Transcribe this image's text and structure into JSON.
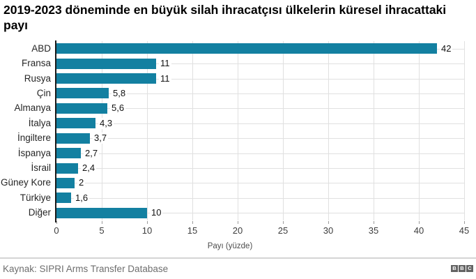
{
  "title": "2019-2023 döneminde en büyük silah ihracatçısı ülkelerin küresel ihracattaki payı",
  "chart_data": {
    "type": "bar",
    "orientation": "horizontal",
    "categories": [
      "ABD",
      "Fransa",
      "Rusya",
      "Çin",
      "Almanya",
      "İtalya",
      "İngiltere",
      "İspanya",
      "İsrail",
      "Güney Kore",
      "Türkiye",
      "Diğer"
    ],
    "values": [
      42,
      11,
      11,
      5.8,
      5.6,
      4.3,
      3.7,
      2.7,
      2.4,
      2,
      1.6,
      10
    ],
    "value_labels": [
      "42",
      "11",
      "11",
      "5,8",
      "5,6",
      "4,3",
      "3,7",
      "2,7",
      "2,4",
      "2",
      "1,6",
      "10"
    ],
    "title": "2019-2023 döneminde en büyük silah ihracatçısı ülkelerin küresel ihracattaki payı",
    "xlabel": "Payı (yüzde)",
    "ylabel": "",
    "x_ticks": [
      0,
      5,
      10,
      15,
      20,
      25,
      30,
      35,
      40,
      45
    ],
    "xlim": [
      0,
      45
    ],
    "grid": true,
    "legend": false,
    "bar_color": "#1380A1",
    "grid_color": "#e0e0e0",
    "axis_color": "#1a1a1a"
  },
  "footer": {
    "source": "Kaynak: SIPRI Arms Transfer Database",
    "logo_letters": [
      "B",
      "B",
      "C"
    ]
  }
}
